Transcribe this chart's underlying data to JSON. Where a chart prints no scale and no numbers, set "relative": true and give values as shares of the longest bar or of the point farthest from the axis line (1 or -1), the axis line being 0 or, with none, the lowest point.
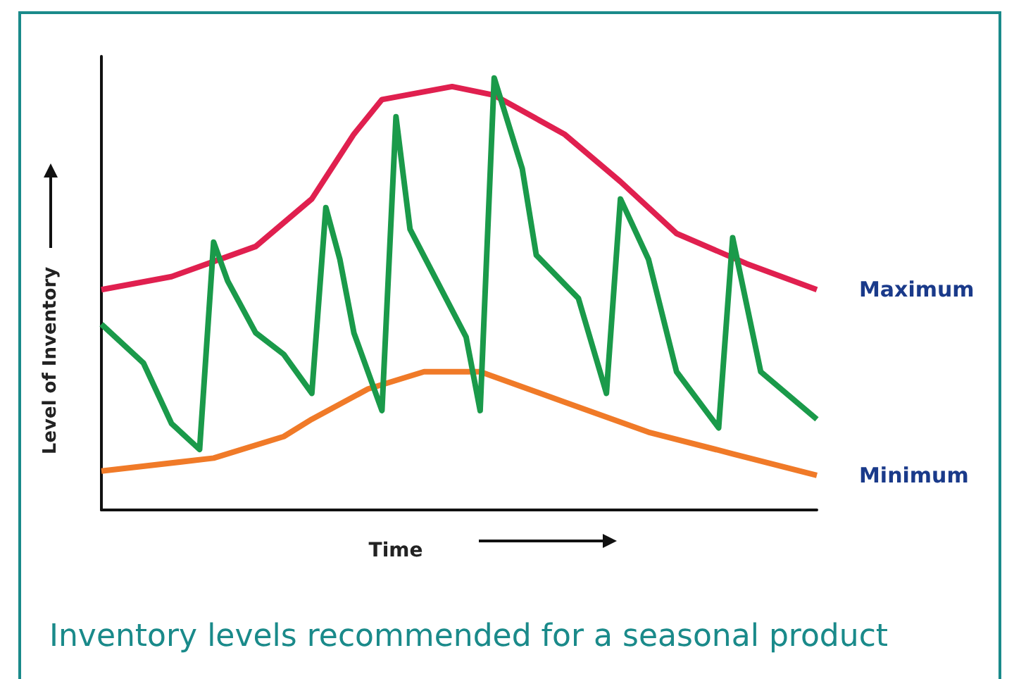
{
  "chart_data": {
    "type": "line",
    "relative": true,
    "title": "Inventory levels recommended for a seasonal product",
    "xlabel": "Time",
    "ylabel": "Level of Inventory",
    "legend": false,
    "grid": false,
    "marker": "none",
    "categories": [
      null,
      null,
      null,
      null,
      null,
      null,
      null,
      null,
      null,
      null,
      null,
      null,
      null,
      null,
      null,
      null,
      null,
      null,
      null,
      null,
      null,
      null,
      null,
      null,
      null,
      null,
      null,
      null,
      null,
      null,
      null,
      null,
      null,
      null,
      null,
      null,
      null,
      null,
      null,
      null,
      null,
      null,
      null,
      null,
      null,
      null,
      null,
      null,
      null,
      null,
      null,
      null
    ],
    "series": [
      {
        "name": "Maximum",
        "color": "#e0204f",
        "values": [
          0.51,
          null,
          null,
          null,
          null,
          0.54,
          null,
          null,
          null,
          null,
          null,
          0.61,
          null,
          null,
          null,
          0.72,
          null,
          null,
          0.87,
          null,
          0.95,
          null,
          null,
          null,
          null,
          0.98,
          null,
          null,
          0.96,
          null,
          null,
          null,
          null,
          0.87,
          null,
          null,
          null,
          0.76,
          null,
          null,
          null,
          0.64,
          null,
          null,
          null,
          null,
          0.57,
          null,
          null,
          null,
          null,
          0.51
        ]
      },
      {
        "name": "Minimum",
        "color": "#f07a28",
        "values": [
          0.09,
          null,
          null,
          null,
          null,
          null,
          null,
          null,
          0.12,
          null,
          null,
          null,
          null,
          0.17,
          null,
          0.21,
          null,
          null,
          null,
          0.28,
          null,
          null,
          null,
          0.32,
          null,
          null,
          null,
          0.32,
          null,
          null,
          null,
          null,
          null,
          0.25,
          null,
          null,
          null,
          null,
          null,
          0.18,
          null,
          null,
          null,
          null,
          null,
          0.13,
          null,
          null,
          null,
          null,
          null,
          0.08
        ]
      },
      {
        "color": "#1a9a4a",
        "values": [
          0.43,
          null,
          null,
          0.34,
          null,
          0.2,
          null,
          0.14,
          0.62,
          0.53,
          null,
          0.41,
          null,
          0.36,
          null,
          0.27,
          0.7,
          0.58,
          0.41,
          null,
          0.23,
          0.91,
          0.65,
          null,
          null,
          null,
          0.4,
          0.23,
          1.0,
          null,
          0.79,
          0.59,
          null,
          null,
          0.49,
          null,
          0.27,
          0.72,
          null,
          0.58,
          null,
          0.32,
          null,
          null,
          0.19,
          0.63,
          null,
          0.32,
          null,
          null,
          null,
          0.21
        ]
      }
    ]
  }
}
